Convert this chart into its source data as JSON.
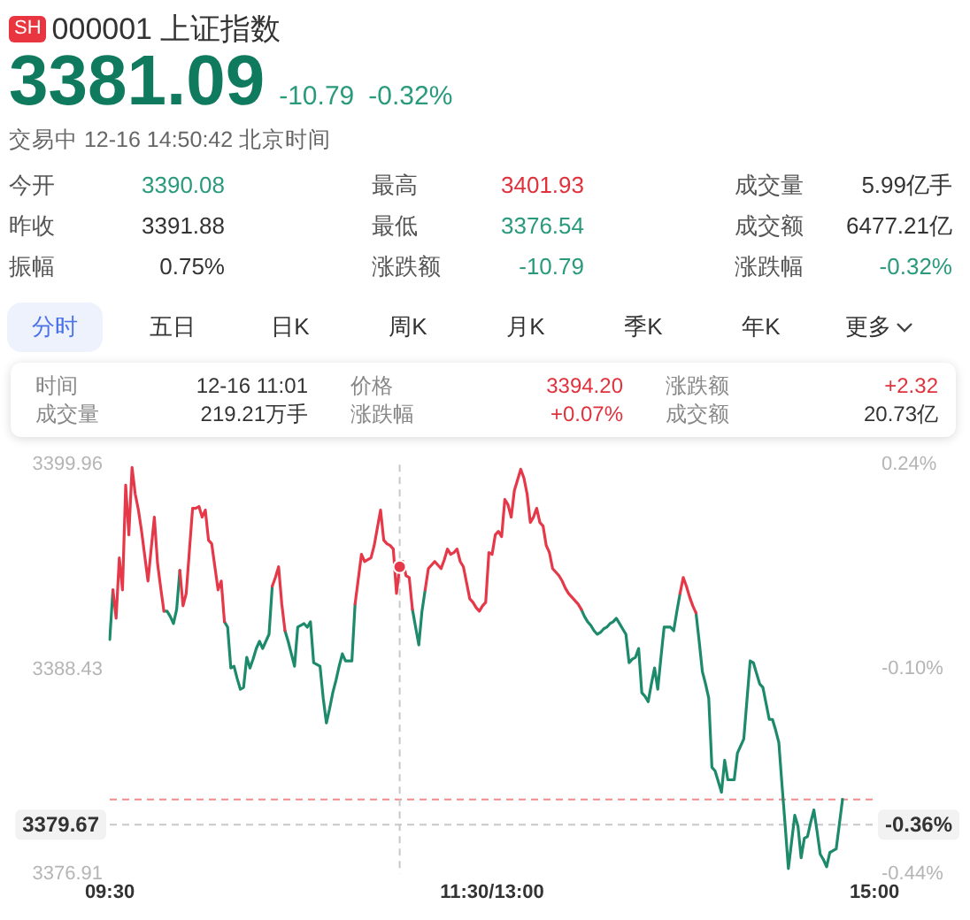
{
  "chart_data": {
    "type": "line",
    "title": "000001 上证指数",
    "subtitle": "交易中 12-16 14:50:42 北京时间",
    "annotations": [
      "SH",
      "3381.09",
      "-10.79",
      "-0.32%",
      "今开",
      "3390.08",
      "最高",
      "3401.93",
      "成交量",
      "5.99亿手",
      "昨收",
      "3391.88",
      "最低",
      "3376.54",
      "成交额",
      "6477.21亿",
      "振幅",
      "0.75%",
      "涨跌额",
      "-10.79",
      "涨跌幅",
      "-0.32%",
      "分时",
      "五日",
      "日K",
      "周K",
      "月K",
      "季K",
      "年K",
      "更多",
      "时间",
      "12-16 11:01",
      "价格",
      "3394.20",
      "涨跌额",
      "+2.32",
      "成交量",
      "219.21万手",
      "涨跌幅",
      "+0.07%",
      "成交额",
      "20.73亿",
      "-0.36%"
    ],
    "categories": [
      "09:30",
      null,
      null,
      null,
      null,
      null,
      null,
      null,
      null,
      null,
      null,
      null,
      null,
      null,
      null,
      null,
      null,
      null,
      null,
      null,
      null,
      null,
      null,
      null,
      null,
      null,
      null,
      null,
      null,
      null,
      null,
      null,
      null,
      null,
      null,
      null,
      null,
      null,
      null,
      null,
      null,
      null,
      null,
      null,
      null,
      null,
      null,
      null,
      null,
      null,
      null,
      null,
      null,
      null,
      null,
      null,
      null,
      null,
      null,
      null,
      null,
      null,
      null,
      null,
      null,
      null,
      null,
      null,
      null,
      null,
      null,
      null,
      null,
      null,
      null,
      null,
      null,
      null,
      null,
      null,
      null,
      null,
      null,
      null,
      null,
      null,
      null,
      null,
      null,
      null,
      null,
      null,
      null,
      null,
      null,
      null,
      null,
      null,
      null,
      null,
      null,
      null,
      null,
      null,
      null,
      null,
      null,
      null,
      null,
      null,
      null,
      null,
      null,
      null,
      null,
      null,
      null,
      null,
      null,
      null,
      "11:30/13:00",
      null,
      null,
      null,
      null,
      null,
      null,
      null,
      null,
      null,
      null,
      null,
      null,
      null,
      null,
      null,
      null,
      null,
      null,
      null,
      null,
      null,
      null,
      null,
      null,
      null,
      null,
      null,
      null,
      null,
      null,
      null,
      null,
      null,
      null,
      null,
      null,
      null,
      null,
      null,
      null,
      null,
      null,
      null,
      null,
      null,
      null,
      null,
      null,
      null,
      null,
      null,
      null,
      null,
      null,
      null,
      null,
      null,
      null,
      null,
      null,
      null,
      null,
      null,
      null,
      null,
      null,
      null,
      null,
      null,
      null,
      null,
      null,
      null,
      null,
      null,
      null,
      null,
      null,
      null,
      null,
      null,
      null,
      null,
      null,
      null,
      null,
      null,
      null,
      null,
      null,
      null,
      null,
      null,
      null,
      null,
      null,
      null,
      null,
      null,
      null,
      null,
      null,
      null,
      null,
      null,
      null,
      null,
      null,
      null,
      null,
      null,
      null,
      null,
      null,
      null,
      null,
      null,
      null,
      null,
      "15:00"
    ],
    "series": [
      {
        "color": "#e5394a",
        "values": [
          null,
          3392.9,
          3391.3,
          3394.7,
          3392.9,
          3398.8,
          3396.0,
          3399.8,
          3398.3,
          3397.4,
          3396.2,
          3394.8,
          3393.4,
          3395.2,
          3397.0,
          3394.4,
          3393.0,
          3391.7,
          null,
          null,
          null,
          null,
          3394.0,
          3392.0,
          3392.7,
          3395.1,
          3397.5,
          3397.5,
          3397.6,
          3397.0,
          3397.4,
          3395.7,
          3395.5,
          3394.2,
          3392.9,
          3393.4,
          3391.1,
          null,
          null,
          null,
          null,
          null,
          null,
          null,
          null,
          null,
          null,
          null,
          null,
          null,
          null,
          3393.1,
          3393.6,
          3394.2,
          3392.1,
          3390.6,
          null,
          null,
          null,
          null,
          null,
          null,
          null,
          null,
          null,
          null,
          null,
          null,
          null,
          null,
          null,
          null,
          null,
          null,
          null,
          null,
          null,
          3392.1,
          3393.5,
          3394.9,
          3394.5,
          3394.6,
          3394.7,
          3395.4,
          3396.4,
          3397.4,
          3395.7,
          3395.5,
          3395.4,
          3395.2,
          3392.7,
          3394.2,
          3394.5,
          3393.7,
          3393.6,
          3391.8,
          null,
          null,
          null,
          3392.9,
          3394.1,
          3394.3,
          3394.5,
          3394.3,
          3394.1,
          3394.6,
          3395.2,
          3394.9,
          3395.0,
          3395.2,
          3394.5,
          3394.2,
          3393.3,
          3392.4,
          3392.2,
          3391.9,
          3391.7,
          3392.0,
          3392.2,
          3395.0,
          3394.9,
          3396.0,
          3396.2,
          3395.9,
          3398.0,
          3397.7,
          3397.0,
          3398.5,
          3399.1,
          3399.7,
          3399.2,
          3398.3,
          3396.7,
          3397.0,
          3397.5,
          3396.7,
          3396.5,
          3395.4,
          3395.0,
          3394.1,
          3393.9,
          3393.7,
          3393.4,
          3393.0,
          3392.7,
          3392.5,
          3392.3,
          3392.1,
          3391.8,
          null,
          null,
          null,
          null,
          null,
          null,
          null,
          null,
          null,
          null,
          null,
          null,
          null,
          null,
          null,
          null,
          null,
          null,
          null,
          null,
          null,
          null,
          null,
          null,
          null,
          null,
          null,
          null,
          null,
          null,
          3392.7,
          3393.6,
          3393.1,
          3392.5,
          3392.0,
          3391.6,
          null,
          null,
          null,
          null,
          null,
          null,
          null,
          null,
          null,
          null,
          null,
          null,
          null,
          null,
          null,
          null,
          null,
          null,
          null,
          null,
          null,
          null,
          null,
          null,
          null,
          null,
          null,
          null,
          null,
          null,
          null,
          null,
          null,
          null,
          null,
          null,
          null,
          null,
          null,
          null,
          null,
          null,
          null,
          null,
          null,
          null,
          null,
          null,
          null,
          null,
          null,
          null,
          null,
          null,
          null,
          null
        ]
      },
      {
        "color": "#1d8a6b",
        "values": [
          3390.1,
          3392.9,
          null,
          null,
          null,
          null,
          null,
          null,
          null,
          null,
          null,
          null,
          null,
          null,
          null,
          null,
          null,
          3391.7,
          3391.7,
          3391.4,
          3391.0,
          3391.8,
          3394.0,
          null,
          null,
          null,
          null,
          null,
          null,
          null,
          null,
          null,
          null,
          null,
          null,
          null,
          3391.1,
          3390.8,
          3388.5,
          3388.6,
          3387.9,
          3387.3,
          3387.4,
          3389.1,
          3388.5,
          3389.0,
          3389.6,
          3390.0,
          3389.6,
          3390.0,
          3390.4,
          3393.1,
          null,
          null,
          null,
          3390.6,
          3390.0,
          3389.3,
          3388.6,
          3390.8,
          3390.9,
          3391.0,
          3390.8,
          3391.1,
          3388.8,
          3388.7,
          3388.6,
          3386.8,
          3385.4,
          3386.2,
          3387.1,
          3387.8,
          3388.6,
          3389.3,
          3388.9,
          3388.9,
          3388.9,
          3392.1,
          null,
          null,
          null,
          null,
          null,
          null,
          null,
          null,
          null,
          null,
          null,
          null,
          null,
          null,
          null,
          null,
          null,
          3391.8,
          3390.8,
          3389.8,
          3391.7,
          3392.9,
          null,
          null,
          null,
          null,
          null,
          null,
          null,
          null,
          null,
          null,
          null,
          null,
          null,
          null,
          null,
          null,
          null,
          null,
          null,
          null,
          null,
          null,
          null,
          null,
          null,
          null,
          null,
          null,
          null,
          null,
          null,
          null,
          null,
          null,
          null,
          null,
          null,
          null,
          null,
          null,
          null,
          null,
          null,
          null,
          null,
          null,
          null,
          null,
          3391.8,
          3391.4,
          3391.1,
          3390.9,
          3390.6,
          3390.4,
          3390.5,
          3390.7,
          3390.8,
          3391.0,
          3391.1,
          3391.3,
          3391.0,
          3390.7,
          3390.4,
          3388.8,
          3389.0,
          3389.1,
          3389.6,
          3387.1,
          3386.9,
          3386.6,
          3387.6,
          3388.5,
          3387.3,
          3389.1,
          3390.8,
          3390.8,
          3390.8,
          3390.6,
          3391.7,
          3392.7,
          null,
          null,
          null,
          null,
          3391.6,
          3390.0,
          3388.3,
          3387.6,
          3386.8,
          3382.9,
          3382.7,
          3382.1,
          3381.5,
          3383.3,
          3382.2,
          3382.2,
          3382.2,
          3383.7,
          3384.1,
          3384.5,
          3386.7,
          3388.9,
          3388.8,
          3388.2,
          3387.6,
          3387.4,
          3386.5,
          3385.6,
          3385.6,
          3385.0,
          3384.3,
          3381.9,
          3379.6,
          3377.2,
          3378.7,
          3380.2,
          3379.6,
          3377.8,
          3378.9,
          3379.0,
          3379.8,
          3380.5,
          3379.3,
          3378.0,
          3377.7,
          3377.3,
          3378.1,
          3378.2,
          3378.3,
          3379.7,
          3381.1,
          null,
          null,
          null,
          null,
          null,
          null,
          null,
          null,
          null,
          null
        ]
      },
      {
        "type": "scatter",
        "color": "#e5394a",
        "values": [
          null,
          null,
          null,
          null,
          null,
          null,
          null,
          null,
          null,
          null,
          null,
          null,
          null,
          null,
          null,
          null,
          null,
          null,
          null,
          null,
          null,
          null,
          null,
          null,
          null,
          null,
          null,
          null,
          null,
          null,
          null,
          null,
          null,
          null,
          null,
          null,
          null,
          null,
          null,
          null,
          null,
          null,
          null,
          null,
          null,
          null,
          null,
          null,
          null,
          null,
          null,
          null,
          null,
          null,
          null,
          null,
          null,
          null,
          null,
          null,
          null,
          null,
          null,
          null,
          null,
          null,
          null,
          null,
          null,
          null,
          null,
          null,
          null,
          null,
          null,
          null,
          null,
          null,
          null,
          null,
          null,
          null,
          null,
          null,
          null,
          null,
          null,
          null,
          null,
          null,
          null,
          3394.2,
          null,
          null,
          null,
          null,
          null,
          null,
          null,
          null,
          null,
          null,
          null,
          null,
          null,
          null,
          null,
          null,
          null,
          null,
          null,
          null,
          null,
          null,
          null,
          null,
          null,
          null,
          null,
          null,
          null,
          null,
          null,
          null,
          null,
          null,
          null,
          null,
          null,
          null,
          null,
          null,
          null,
          null,
          null,
          null,
          null,
          null,
          null,
          null,
          null,
          null,
          null,
          null,
          null,
          null,
          null,
          null,
          null,
          null,
          null,
          null,
          null,
          null,
          null,
          null,
          null,
          null,
          null,
          null,
          null,
          null,
          null,
          null,
          null,
          null,
          null,
          null,
          null,
          null,
          null,
          null,
          null,
          null,
          null,
          null,
          null,
          null,
          null,
          null,
          null,
          null,
          null,
          null,
          null,
          null,
          null,
          null,
          null,
          null,
          null,
          null,
          null,
          null,
          null,
          null,
          null,
          null,
          null,
          null,
          null,
          null,
          null,
          null,
          null,
          null,
          null,
          null,
          null,
          null,
          null,
          null,
          null,
          null,
          null,
          null,
          null,
          null,
          null,
          null,
          null,
          null,
          null,
          null,
          null,
          null,
          null,
          null,
          null,
          null,
          null,
          null,
          null,
          null,
          null,
          null,
          null,
          null,
          null,
          null,
          null
        ]
      }
    ],
    "ylim": [
      3376.91,
      3399.96
    ],
    "yticks": [
      3399.96,
      3388.43,
      3376.91
    ],
    "y2lim": [
      -0.44,
      0.24
    ],
    "y2ticks": [
      {
        "value": 0.24,
        "label": "0.24%"
      },
      {
        "value": -0.1,
        "label": "-0.10%"
      },
      {
        "value": -0.44,
        "label": "-0.44%"
      }
    ],
    "ref_lines": [
      {
        "axis": "y",
        "value": 3381.09,
        "color": "#f08c8c",
        "line_style": "dashed"
      },
      {
        "axis": "y",
        "value": 3379.67,
        "label": "3379.67",
        "color": "#c8c8c8",
        "line_style": "dashed"
      }
    ]
  }
}
